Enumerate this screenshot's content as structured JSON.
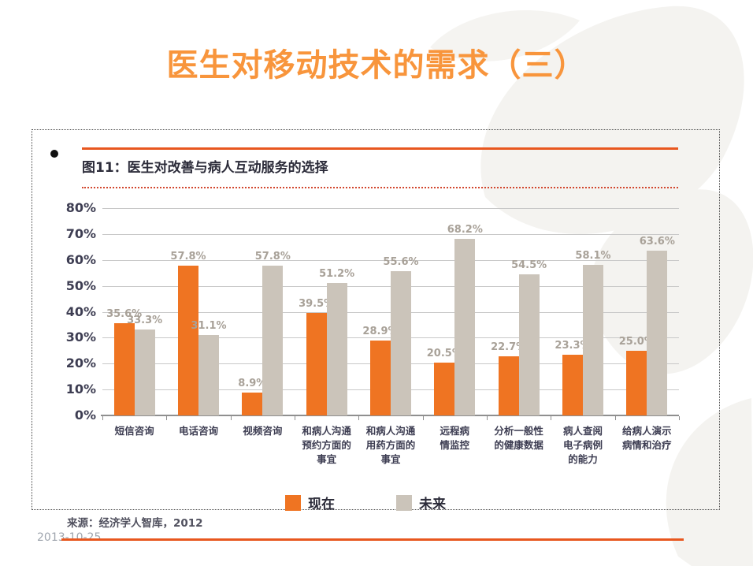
{
  "slide": {
    "title": "医生对移动技术的需求（三）",
    "date": "2013-10-25"
  },
  "figure": {
    "title": "图11：医生对改善与病人互动服务的选择",
    "source": "来源：经济学人智库，2012"
  },
  "chart_data": {
    "type": "bar",
    "title": "图11：医生对改善与病人互动服务的选择",
    "categories": [
      "短信咨询",
      "电话咨询",
      "视频咨询",
      "和病人沟通\n预约方面的\n事宜",
      "和病人沟通\n用药方面的\n事宜",
      "远程病\n情监控",
      "分析一般性\n的健康数据",
      "病人查阅\n电子病例\n的能力",
      "给病人演示\n病情和治疗"
    ],
    "series": [
      {
        "name": "现在",
        "color": "#ef7422",
        "values": [
          35.6,
          57.8,
          8.9,
          39.5,
          28.9,
          20.5,
          22.7,
          23.3,
          25.0
        ],
        "labels": [
          "35.6%",
          "57.8%",
          "8.9%",
          "39.5%",
          "28.9%",
          "20.5%",
          "22.7%",
          "23.3%",
          "25.0%"
        ]
      },
      {
        "name": "未来",
        "color": "#cbc4ba",
        "values": [
          33.3,
          31.1,
          57.8,
          51.2,
          55.6,
          68.2,
          54.5,
          58.1,
          63.6
        ],
        "labels": [
          "33.3%",
          "31.1%",
          "57.8%",
          "51.2%",
          "55.6%",
          "68.2%",
          "54.5%",
          "58.1%",
          "63.6%"
        ]
      }
    ],
    "y_ticks": [
      "80%",
      "70%",
      "60%",
      "50%",
      "40%",
      "30%",
      "20%",
      "10%",
      "0%"
    ],
    "ylim": [
      0,
      80
    ],
    "grid": true,
    "legend_position": "bottom",
    "value_label_format": "{value}%"
  }
}
